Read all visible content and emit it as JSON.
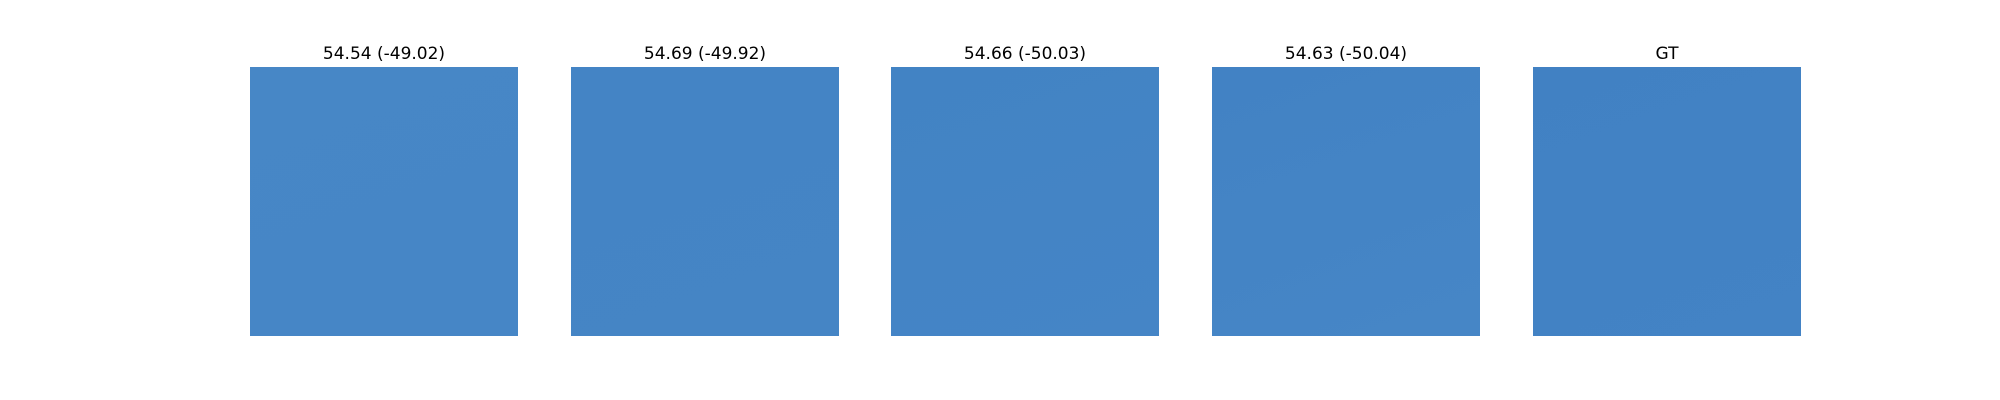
{
  "panels": [
    {
      "title": "54.54 (-49.02)",
      "color_top": "#4787c6",
      "color_bottom": "#4686c6"
    },
    {
      "title": "54.69 (-49.92)",
      "color_top": "#4484c5",
      "color_bottom": "#4585c5"
    },
    {
      "title": "54.66 (-50.03)",
      "color_top": "#4283c4",
      "color_bottom": "#4585c6"
    },
    {
      "title": "54.63 (-50.04)",
      "color_top": "#4282c4",
      "color_bottom": "#4686c6"
    },
    {
      "title": "GT",
      "color_top": "#4181c3",
      "color_bottom": "#4383c5"
    }
  ]
}
